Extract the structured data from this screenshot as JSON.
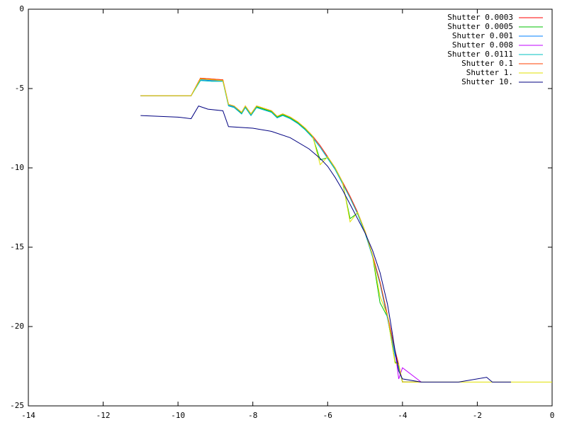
{
  "chart_data": {
    "type": "line",
    "xlim": [
      -14,
      0
    ],
    "xticks": [
      -14,
      -12,
      -10,
      -8,
      -6,
      -4,
      -2,
      0
    ],
    "ylim": [
      -25,
      0
    ],
    "yticks": [
      -25,
      -20,
      -15,
      -10,
      -5,
      0
    ],
    "grid": false,
    "legend": "top-right",
    "series": [
      {
        "name": "Shutter 0.0003",
        "color": "#ff0000",
        "x": [
          -11,
          -9.65,
          -9.4,
          -9.1,
          -8.8,
          -8.65,
          -8.5,
          -8.3,
          -8.2,
          -8.05,
          -7.9,
          -7.7,
          -7.5,
          -7.35,
          -7.2,
          -7.0,
          -6.8,
          -6.6,
          -6.4,
          -6.2,
          -6.0,
          -5.8,
          -5.6,
          -5.4,
          -5.2,
          -5.0,
          -4.8,
          -4.6,
          -4.4,
          -4.2,
          -4.1,
          -4.0,
          -3.5
        ],
        "values": [
          -5.45,
          -5.45,
          -4.35,
          -4.4,
          -4.45,
          -6.0,
          -6.1,
          -6.5,
          -6.1,
          -6.6,
          -6.1,
          -6.25,
          -6.4,
          -6.75,
          -6.6,
          -6.8,
          -7.1,
          -7.5,
          -8.0,
          -8.6,
          -9.3,
          -10.0,
          -10.9,
          -11.8,
          -12.8,
          -14.0,
          -15.5,
          -17.2,
          -19.3,
          -21.5,
          -22.4,
          -23.5,
          -23.5
        ]
      },
      {
        "name": "Shutter 0.0005",
        "color": "#00c000",
        "x": [
          -11,
          -9.65,
          -9.4,
          -9.1,
          -8.8,
          -8.65,
          -8.5,
          -8.3,
          -8.2,
          -8.05,
          -7.9,
          -7.7,
          -7.5,
          -7.35,
          -7.2,
          -7.0,
          -6.8,
          -6.6,
          -6.4,
          -6.2,
          -6.0,
          -5.8,
          -5.6,
          -5.4,
          -5.2,
          -5.0,
          -4.8,
          -4.6,
          -4.4,
          -4.2,
          -4.1,
          -4.0,
          -3.5
        ],
        "values": [
          -5.45,
          -5.45,
          -4.45,
          -4.5,
          -4.5,
          -6.05,
          -6.15,
          -6.55,
          -6.15,
          -6.65,
          -6.15,
          -6.3,
          -6.45,
          -6.8,
          -6.65,
          -6.85,
          -7.15,
          -7.55,
          -8.05,
          -9.5,
          -9.35,
          -10.05,
          -10.95,
          -13.2,
          -12.85,
          -14.05,
          -15.55,
          -18.5,
          -19.4,
          -22.2,
          -22.5,
          -23.5,
          -23.5
        ]
      },
      {
        "name": "Shutter 0.001",
        "color": "#0080ff",
        "x": [
          -11,
          -9.65,
          -9.4,
          -9.1,
          -8.8,
          -8.65,
          -8.5,
          -8.3,
          -8.2,
          -8.05,
          -7.9,
          -7.7,
          -7.5,
          -7.35,
          -7.2,
          -7.0,
          -6.8,
          -6.6,
          -6.4,
          -6.2,
          -6.0,
          -5.8,
          -5.6,
          -5.4,
          -5.2,
          -5.0,
          -4.8,
          -4.6,
          -4.4,
          -4.2,
          -4.1,
          -4.0,
          -3.5
        ],
        "values": [
          -5.45,
          -5.45,
          -4.45,
          -4.5,
          -4.5,
          -6.05,
          -6.15,
          -6.6,
          -6.2,
          -6.7,
          -6.2,
          -6.35,
          -6.5,
          -6.85,
          -6.7,
          -6.9,
          -7.2,
          -7.6,
          -8.1,
          -8.7,
          -9.4,
          -10.1,
          -11.0,
          -11.9,
          -12.9,
          -14.1,
          -15.6,
          -17.3,
          -19.5,
          -21.8,
          -22.6,
          -23.5,
          -23.5
        ]
      },
      {
        "name": "Shutter 0.008",
        "color": "#c000ff",
        "x": [
          -11,
          -9.65,
          -9.4,
          -9.1,
          -8.8,
          -8.65,
          -8.5,
          -8.3,
          -8.2,
          -8.05,
          -7.9,
          -7.7,
          -7.5,
          -7.35,
          -7.2,
          -7.0,
          -6.8,
          -6.6,
          -6.4,
          -6.2,
          -6.0,
          -5.8,
          -5.6,
          -5.4,
          -5.2,
          -5.0,
          -4.8,
          -4.6,
          -4.4,
          -4.2,
          -4.1,
          -4.0,
          -3.5
        ],
        "values": [
          -5.45,
          -5.45,
          -4.4,
          -4.45,
          -4.5,
          -6.0,
          -6.1,
          -6.5,
          -6.1,
          -6.6,
          -6.1,
          -6.25,
          -6.4,
          -6.75,
          -6.6,
          -6.8,
          -7.1,
          -7.5,
          -8.0,
          -8.6,
          -9.3,
          -10.0,
          -10.9,
          -11.8,
          -12.8,
          -14.0,
          -15.5,
          -17.2,
          -19.3,
          -21.5,
          -23.3,
          -22.6,
          -23.5
        ]
      },
      {
        "name": "Shutter 0.0111",
        "color": "#00c0c0",
        "x": [
          -11,
          -9.65,
          -9.4,
          -9.1,
          -8.8,
          -8.65,
          -8.5,
          -8.3,
          -8.2,
          -8.05,
          -7.9,
          -7.7,
          -7.5,
          -7.35,
          -7.2,
          -7.0,
          -6.8,
          -6.6,
          -6.4,
          -6.2,
          -6.0,
          -5.8,
          -5.6,
          -5.4,
          -5.2,
          -5.0,
          -4.8,
          -4.6,
          -4.4,
          -4.2,
          -4.1,
          -4.0,
          -3.5
        ],
        "values": [
          -5.45,
          -5.45,
          -4.5,
          -4.55,
          -4.55,
          -6.1,
          -6.2,
          -6.6,
          -6.2,
          -6.7,
          -6.2,
          -6.35,
          -6.5,
          -6.85,
          -6.7,
          -6.9,
          -7.2,
          -7.6,
          -8.1,
          -8.7,
          -9.4,
          -10.1,
          -11.0,
          -11.9,
          -12.9,
          -14.1,
          -15.6,
          -17.3,
          -19.4,
          -21.6,
          -22.5,
          -23.5,
          -23.5
        ]
      },
      {
        "name": "Shutter 0.1",
        "color": "#ff4000",
        "x": [
          -11,
          -9.65,
          -9.4,
          -9.1,
          -8.8,
          -8.65,
          -8.5,
          -8.3,
          -8.2,
          -8.05,
          -7.9,
          -7.7,
          -7.5,
          -7.35,
          -7.2,
          -7.0,
          -6.8,
          -6.6,
          -6.4,
          -6.2,
          -6.0,
          -5.8,
          -5.6,
          -5.4,
          -5.2,
          -5.0,
          -4.8,
          -4.6,
          -4.4,
          -4.2,
          -4.1,
          -4.0,
          -3.5
        ],
        "values": [
          -5.45,
          -5.45,
          -4.35,
          -4.4,
          -4.45,
          -6.0,
          -6.1,
          -6.5,
          -6.1,
          -6.6,
          -6.1,
          -6.25,
          -6.4,
          -6.75,
          -6.6,
          -6.8,
          -7.1,
          -7.5,
          -8.0,
          -8.6,
          -9.3,
          -10.0,
          -10.9,
          -11.8,
          -12.8,
          -14.0,
          -15.5,
          -17.2,
          -19.3,
          -21.5,
          -22.4,
          -23.5,
          -23.5
        ]
      },
      {
        "name": "Shutter 1.",
        "color": "#e0e000",
        "x": [
          -11,
          -9.65,
          -9.4,
          -9.1,
          -8.8,
          -8.65,
          -8.5,
          -8.3,
          -8.2,
          -8.05,
          -7.9,
          -7.7,
          -7.5,
          -7.35,
          -7.2,
          -7.0,
          -6.8,
          -6.6,
          -6.4,
          -6.2,
          -6.0,
          -5.8,
          -5.6,
          -5.4,
          -5.2,
          -5.0,
          -4.8,
          -4.6,
          -4.4,
          -4.2,
          -4.1,
          -4.0,
          -3.5,
          -1.1,
          0
        ],
        "values": [
          -5.45,
          -5.45,
          -4.4,
          -4.45,
          -4.5,
          -6.0,
          -6.1,
          -6.5,
          -6.1,
          -6.6,
          -6.1,
          -6.25,
          -6.4,
          -6.75,
          -6.6,
          -6.8,
          -7.1,
          -7.5,
          -8.0,
          -9.8,
          -9.3,
          -10.0,
          -10.9,
          -13.4,
          -12.8,
          -14.0,
          -15.5,
          -18.1,
          -19.3,
          -22.3,
          -22.4,
          -23.5,
          -23.5,
          -23.5,
          -23.5
        ]
      },
      {
        "name": "Shutter 10.",
        "color": "#000080",
        "x": [
          -11,
          -10,
          -9.65,
          -9.45,
          -9.2,
          -8.8,
          -8.65,
          -8,
          -7.5,
          -7,
          -6.5,
          -6.2,
          -6.0,
          -5.8,
          -5.6,
          -5.4,
          -5.2,
          -5.0,
          -4.8,
          -4.6,
          -4.4,
          -4.3,
          -4.2,
          -4.1,
          -4.0,
          -3.5,
          -2.5,
          -1.75,
          -1.6,
          -1.1
        ],
        "values": [
          -6.7,
          -6.8,
          -6.9,
          -6.1,
          -6.3,
          -6.4,
          -7.4,
          -7.5,
          -7.7,
          -8.1,
          -8.8,
          -9.4,
          -9.9,
          -10.6,
          -11.4,
          -12.3,
          -13.2,
          -14.1,
          -15.2,
          -16.6,
          -18.6,
          -20.0,
          -21.5,
          -22.8,
          -23.3,
          -23.5,
          -23.5,
          -23.2,
          -23.5,
          -23.5
        ]
      }
    ]
  }
}
